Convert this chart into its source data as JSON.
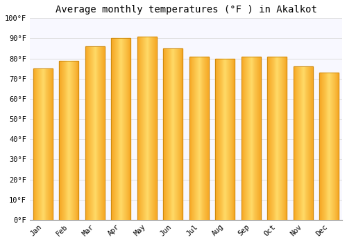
{
  "title": "Average monthly temperatures (°F ) in Akalkot",
  "months": [
    "Jan",
    "Feb",
    "Mar",
    "Apr",
    "May",
    "Jun",
    "Jul",
    "Aug",
    "Sep",
    "Oct",
    "Nov",
    "Dec"
  ],
  "values": [
    75,
    79,
    86,
    90,
    91,
    85,
    81,
    80,
    81,
    81,
    76,
    73
  ],
  "bar_color_center": "#FFD966",
  "bar_color_edge": "#F5A623",
  "bar_border_color": "#C8850A",
  "ylim": [
    0,
    100
  ],
  "ytick_step": 10,
  "background_color": "#FFFFFF",
  "plot_bg_color": "#F8F8FF",
  "grid_color": "#DDDDDD",
  "title_fontsize": 10,
  "tick_fontsize": 7.5,
  "font_family": "monospace"
}
